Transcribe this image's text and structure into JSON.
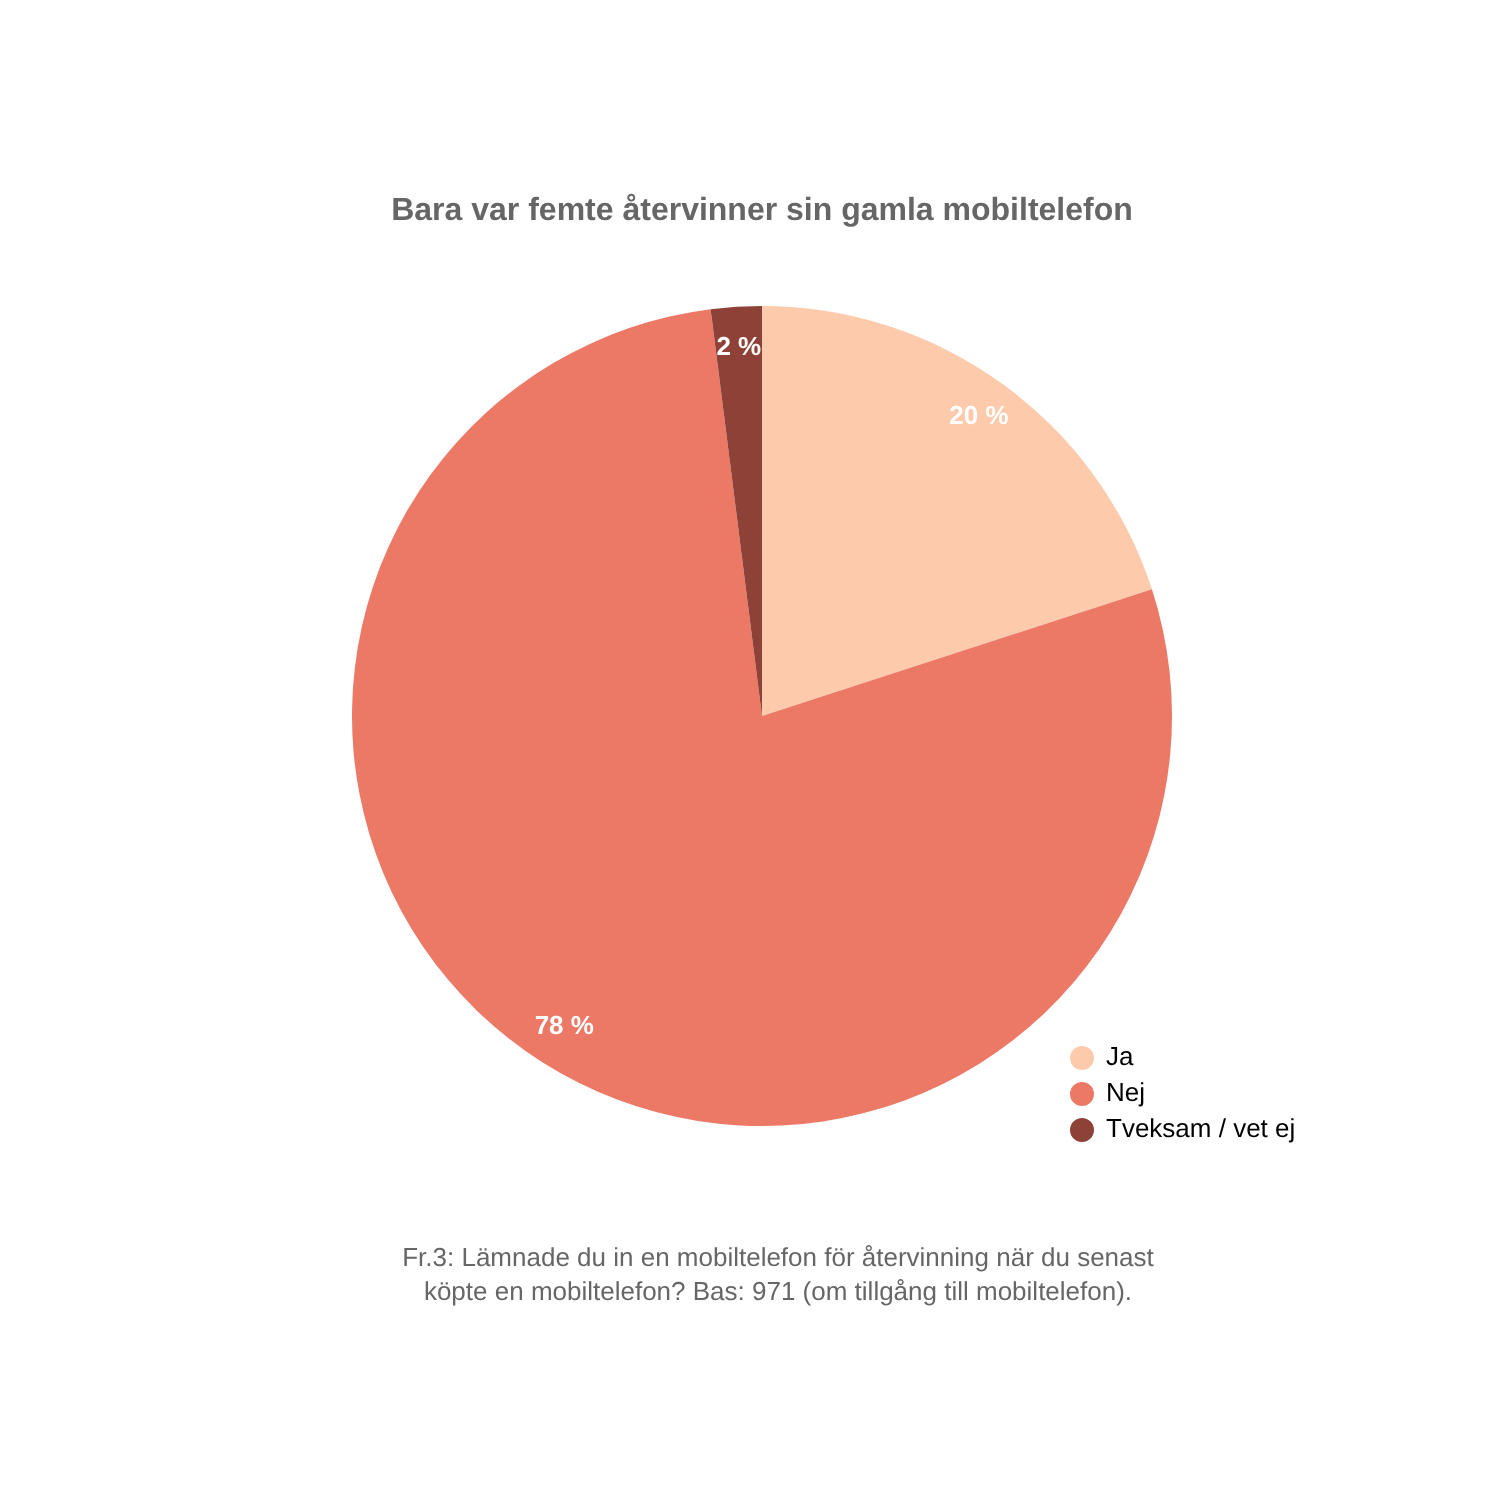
{
  "chart_data": {
    "type": "pie",
    "title": "Bara var femte återvinner sin gamla mobiltelefon",
    "categories": [
      "Ja",
      "Nej",
      "Tveksam / vet ej"
    ],
    "values": [
      20,
      78,
      2
    ],
    "colors": [
      "#fdcbac",
      "#ec7866",
      "#8e4237"
    ],
    "value_labels": [
      "20 %",
      "78 %",
      "2 %"
    ],
    "legend": "bottom right",
    "annotations": [
      "Fr.3: Lämnade du in en mobiltelefon för återvinning när du senast köpte en mobiltelefon? Bas: 971 (om tillgång till mobiltelefon)."
    ]
  }
}
